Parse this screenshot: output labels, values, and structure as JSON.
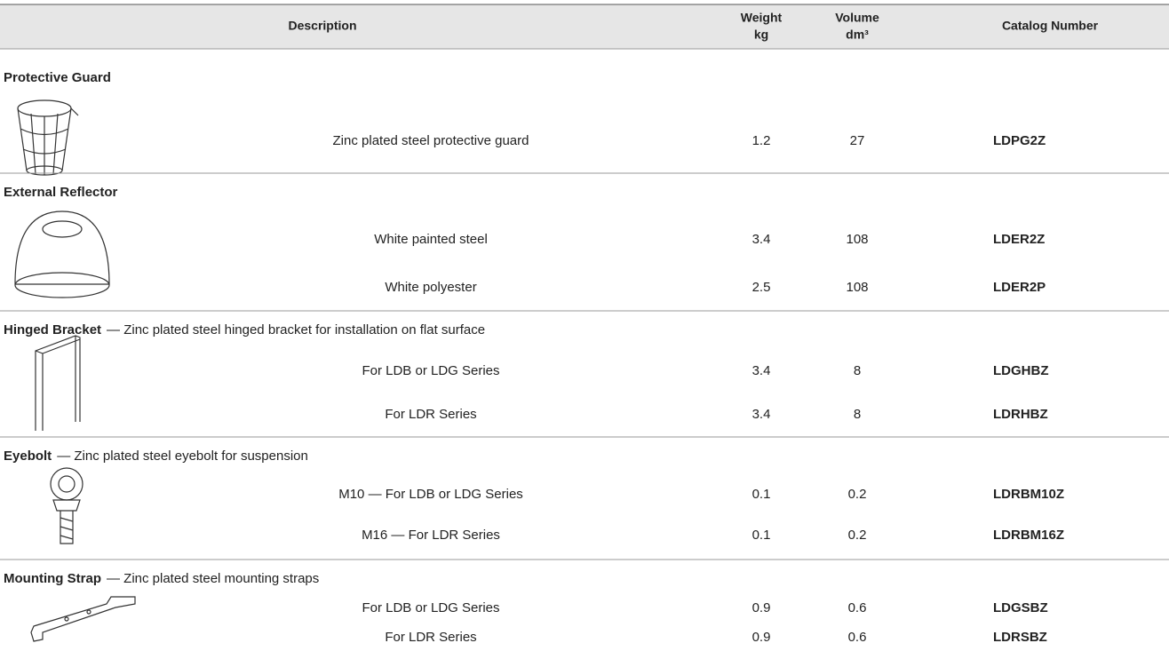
{
  "header": {
    "description": "Description",
    "weight": "Weight",
    "weight_unit": "kg",
    "volume": "Volume",
    "volume_unit": "dm³",
    "catalog": "Catalog Number"
  },
  "sections": [
    {
      "name": "Protective Guard",
      "rows": [
        {
          "description": "Zinc plated steel protective guard",
          "weight": 1.2,
          "volume": 27,
          "catalog": "LDPG2Z"
        }
      ]
    },
    {
      "name": "External Reflector",
      "rows": [
        {
          "description": "White painted steel",
          "weight": 3.4,
          "volume": 108,
          "catalog": "LDER2Z"
        },
        {
          "description": "White polyester",
          "weight": 2.5,
          "volume": 108,
          "catalog": "LDER2P"
        }
      ]
    },
    {
      "name": "Hinged Bracket",
      "note": "— Zinc plated steel hinged bracket for installation on flat surface",
      "rows": [
        {
          "description": "For LDB or LDG Series",
          "weight": 3.4,
          "volume": 8,
          "catalog": "LDGHBZ"
        },
        {
          "description": "For LDR Series",
          "weight": 3.4,
          "volume": 8,
          "catalog": "LDRHBZ"
        }
      ]
    },
    {
      "name": "Eyebolt",
      "note": "— Zinc plated steel eyebolt for suspension",
      "rows": [
        {
          "description": "M10 — For LDB or LDG Series",
          "weight": 0.1,
          "volume": 0.2,
          "catalog": "LDRBM10Z"
        },
        {
          "description": "M16 — For LDR Series",
          "weight": 0.1,
          "volume": 0.2,
          "catalog": "LDRBM16Z"
        }
      ]
    },
    {
      "name": "Mounting Strap",
      "note": "— Zinc plated steel mounting straps",
      "rows": [
        {
          "description": "For LDB or LDG Series",
          "weight": 0.9,
          "volume": 0.6,
          "catalog": "LDGSBZ"
        },
        {
          "description": "For LDR Series",
          "weight": 0.9,
          "volume": 0.6,
          "catalog": "LDRSBZ"
        }
      ]
    }
  ]
}
